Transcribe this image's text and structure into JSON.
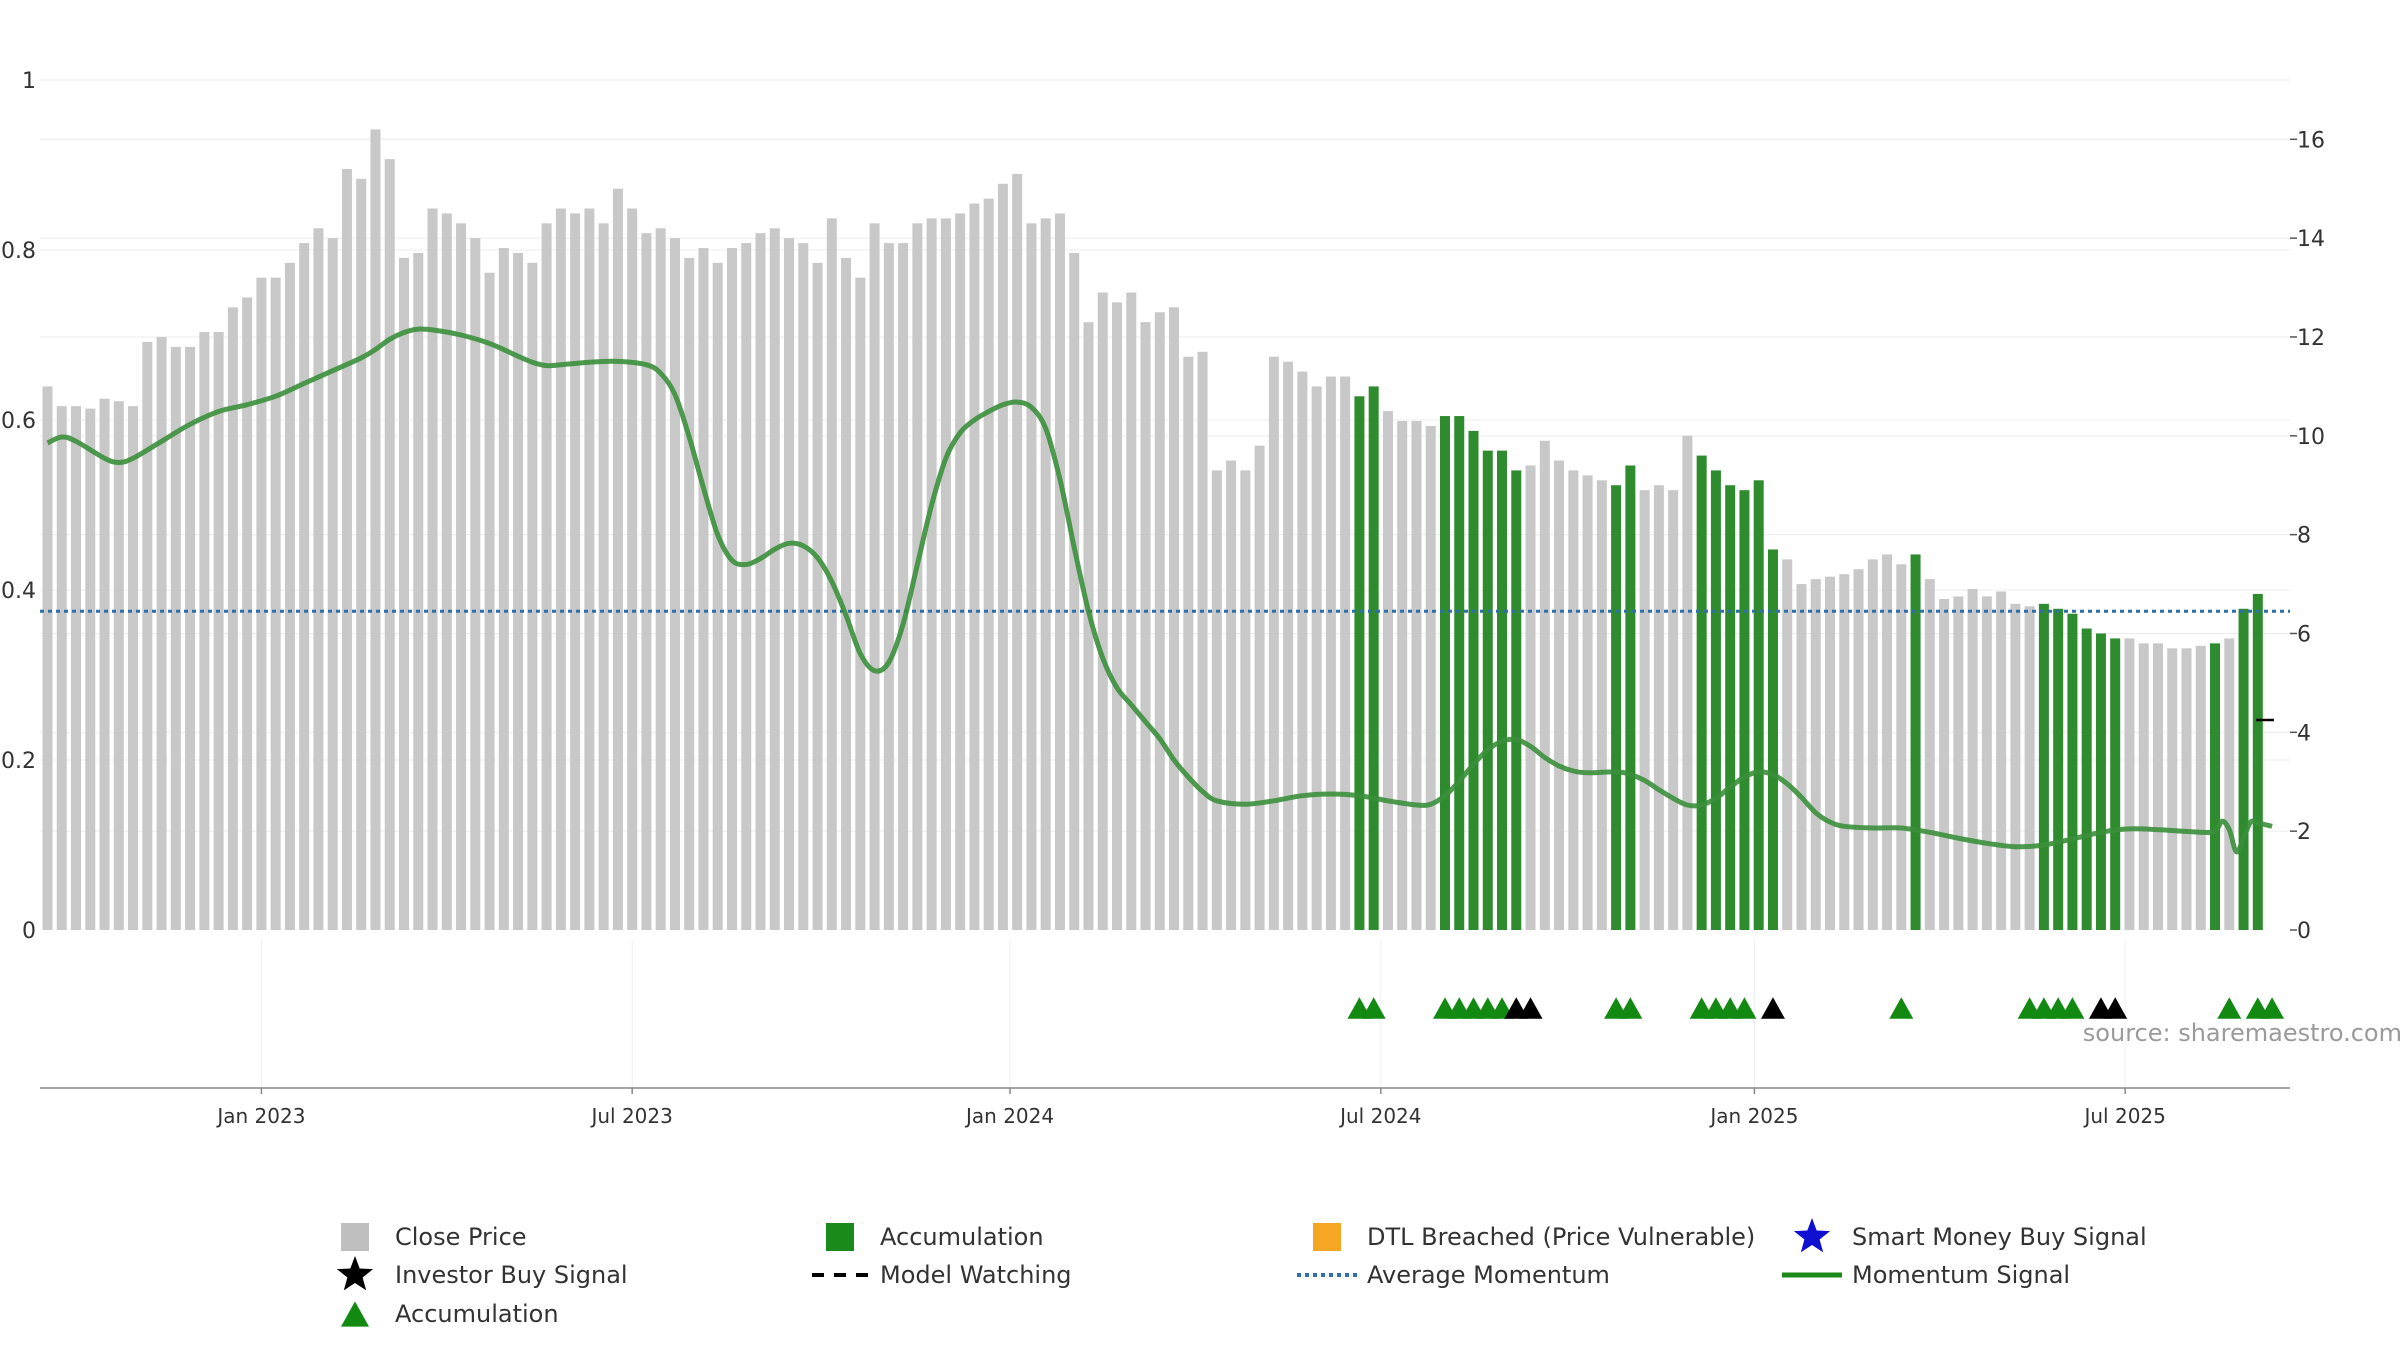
{
  "chart_data": {
    "type": "bar",
    "title": "",
    "source": "source: sharemaestro.com",
    "left_axis": {
      "ylim": [
        0,
        1
      ],
      "ticks": [
        0,
        0.2,
        0.4,
        0.6,
        0.8,
        1
      ],
      "tick_labels": [
        "0",
        "0.2",
        "0.4",
        "0.6",
        "0.8",
        "1"
      ]
    },
    "right_axis": {
      "ylim": [
        0,
        17.2
      ],
      "ticks": [
        0,
        2,
        4,
        6,
        8,
        10,
        12,
        14,
        16
      ],
      "tick_labels": [
        "0",
        "2",
        "4",
        "6",
        "8",
        "10",
        "12",
        "14",
        "16"
      ]
    },
    "x_axis": {
      "week_count": 156,
      "ticks": [
        {
          "label": "Jan 2023",
          "week": 15
        },
        {
          "label": "Jul 2023",
          "week": 41
        },
        {
          "label": "Jan 2024",
          "week": 67.5
        },
        {
          "label": "Jul 2024",
          "week": 93.5
        },
        {
          "label": "Jan 2025",
          "week": 119.7
        },
        {
          "label": "Jul 2025",
          "week": 145.7
        }
      ]
    },
    "series": [
      {
        "name": "Close Price",
        "axis": "right",
        "color": "#c8c8c8",
        "accumulation_color": "#2e8b2e",
        "values": [
          11.0,
          10.6,
          10.6,
          10.55,
          10.75,
          10.7,
          10.6,
          11.9,
          12.0,
          11.8,
          11.8,
          12.1,
          12.1,
          12.6,
          12.8,
          13.2,
          13.2,
          13.5,
          13.9,
          14.2,
          14.0,
          15.4,
          15.2,
          16.2,
          15.6,
          13.6,
          13.7,
          14.6,
          14.5,
          14.3,
          14.0,
          13.3,
          13.8,
          13.7,
          13.5,
          14.3,
          14.6,
          14.5,
          14.6,
          14.3,
          15.0,
          14.6,
          14.1,
          14.2,
          14.0,
          13.6,
          13.8,
          13.5,
          13.8,
          13.9,
          14.1,
          14.2,
          14.0,
          13.9,
          13.5,
          14.4,
          13.6,
          13.2,
          14.3,
          13.9,
          13.9,
          14.3,
          14.4,
          14.4,
          14.5,
          14.7,
          14.8,
          15.1,
          15.3,
          14.3,
          14.4,
          14.5,
          13.7,
          12.3,
          12.9,
          12.7,
          12.9,
          12.3,
          12.5,
          12.6,
          11.6,
          11.7,
          9.3,
          9.5,
          9.3,
          9.8,
          11.6,
          11.5,
          11.3,
          11.0,
          11.2,
          11.2,
          10.8,
          11.0,
          10.5,
          10.3,
          10.3,
          10.2,
          10.4,
          10.4,
          10.1,
          9.7,
          9.7,
          9.3,
          9.4,
          9.9,
          9.5,
          9.3,
          9.2,
          9.1,
          9.0,
          9.4,
          8.9,
          9.0,
          8.9,
          10.0,
          9.6,
          9.3,
          9.0,
          8.9,
          9.1,
          7.7,
          7.5,
          7.0,
          7.1,
          7.15,
          7.2,
          7.3,
          7.5,
          7.6,
          7.4,
          7.6,
          7.1,
          6.7,
          6.75,
          6.9,
          6.75,
          6.85,
          6.6,
          6.55,
          6.6,
          6.5,
          6.4,
          6.1,
          6.0,
          5.9,
          5.9,
          5.8,
          5.8,
          5.7,
          5.7,
          5.75,
          5.8,
          5.9,
          6.5,
          6.8
        ],
        "accumulation_weeks": [
          92,
          93,
          98,
          99,
          100,
          101,
          102,
          103,
          110,
          111,
          116,
          117,
          118,
          119,
          120,
          121,
          131,
          140,
          141,
          142,
          143,
          144,
          145,
          152,
          154,
          155
        ]
      },
      {
        "name": "Momentum Signal",
        "axis": "left",
        "color": "#3b8f3b",
        "anchors": [
          [
            0,
            0.573
          ],
          [
            1,
            0.58
          ],
          [
            2,
            0.575
          ],
          [
            4,
            0.555
          ],
          [
            5,
            0.55
          ],
          [
            6,
            0.555
          ],
          [
            8,
            0.575
          ],
          [
            10,
            0.595
          ],
          [
            12,
            0.61
          ],
          [
            14,
            0.618
          ],
          [
            16,
            0.628
          ],
          [
            18,
            0.643
          ],
          [
            20,
            0.658
          ],
          [
            22,
            0.673
          ],
          [
            23,
            0.683
          ],
          [
            24,
            0.695
          ],
          [
            25,
            0.703
          ],
          [
            26,
            0.707
          ],
          [
            27,
            0.706
          ],
          [
            29,
            0.7
          ],
          [
            31,
            0.69
          ],
          [
            33,
            0.675
          ],
          [
            34,
            0.668
          ],
          [
            35,
            0.664
          ],
          [
            36,
            0.665
          ],
          [
            38,
            0.668
          ],
          [
            40,
            0.669
          ],
          [
            42,
            0.665
          ],
          [
            43,
            0.655
          ],
          [
            44,
            0.63
          ],
          [
            45,
            0.58
          ],
          [
            46,
            0.52
          ],
          [
            47,
            0.465
          ],
          [
            48,
            0.435
          ],
          [
            49,
            0.43
          ],
          [
            50,
            0.437
          ],
          [
            51,
            0.448
          ],
          [
            52,
            0.455
          ],
          [
            53,
            0.452
          ],
          [
            54,
            0.438
          ],
          [
            55,
            0.41
          ],
          [
            56,
            0.37
          ],
          [
            57,
            0.325
          ],
          [
            58,
            0.305
          ],
          [
            59,
            0.315
          ],
          [
            60,
            0.36
          ],
          [
            61,
            0.43
          ],
          [
            62,
            0.5
          ],
          [
            63,
            0.555
          ],
          [
            64,
            0.585
          ],
          [
            65,
            0.6
          ],
          [
            66,
            0.61
          ],
          [
            67,
            0.618
          ],
          [
            68,
            0.621
          ],
          [
            69,
            0.615
          ],
          [
            70,
            0.59
          ],
          [
            71,
            0.53
          ],
          [
            72,
            0.45
          ],
          [
            73,
            0.375
          ],
          [
            74,
            0.32
          ],
          [
            75,
            0.285
          ],
          [
            76,
            0.265
          ],
          [
            77,
            0.245
          ],
          [
            78,
            0.225
          ],
          [
            79,
            0.2
          ],
          [
            80,
            0.18
          ],
          [
            81,
            0.163
          ],
          [
            82,
            0.152
          ],
          [
            84,
            0.148
          ],
          [
            86,
            0.152
          ],
          [
            88,
            0.158
          ],
          [
            90,
            0.16
          ],
          [
            92,
            0.158
          ],
          [
            94,
            0.152
          ],
          [
            96,
            0.147
          ],
          [
            97,
            0.148
          ],
          [
            98,
            0.158
          ],
          [
            99,
            0.175
          ],
          [
            100,
            0.195
          ],
          [
            101,
            0.212
          ],
          [
            102,
            0.222
          ],
          [
            103,
            0.224
          ],
          [
            104,
            0.216
          ],
          [
            105,
            0.203
          ],
          [
            106,
            0.193
          ],
          [
            107,
            0.187
          ],
          [
            108,
            0.185
          ],
          [
            110,
            0.186
          ],
          [
            111,
            0.183
          ],
          [
            112,
            0.176
          ],
          [
            113,
            0.165
          ],
          [
            114,
            0.155
          ],
          [
            115,
            0.147
          ],
          [
            116,
            0.147
          ],
          [
            117,
            0.155
          ],
          [
            118,
            0.168
          ],
          [
            119,
            0.18
          ],
          [
            120,
            0.186
          ],
          [
            121,
            0.183
          ],
          [
            122,
            0.172
          ],
          [
            123,
            0.156
          ],
          [
            124,
            0.138
          ],
          [
            125,
            0.127
          ],
          [
            126,
            0.122
          ],
          [
            128,
            0.12
          ],
          [
            130,
            0.12
          ],
          [
            132,
            0.115
          ],
          [
            134,
            0.108
          ],
          [
            136,
            0.102
          ],
          [
            138,
            0.098
          ],
          [
            140,
            0.1
          ],
          [
            142,
            0.107
          ],
          [
            144,
            0.115
          ],
          [
            146,
            0.119
          ],
          [
            148,
            0.118
          ],
          [
            150,
            0.116
          ],
          [
            151,
            0.115
          ],
          [
            152,
            0.116
          ],
          [
            152.5,
            0.128
          ],
          [
            153,
            0.118
          ],
          [
            153.5,
            0.092
          ],
          [
            154,
            0.108
          ],
          [
            154.5,
            0.127
          ],
          [
            155,
            0.126
          ],
          [
            156,
            0.122
          ]
        ]
      },
      {
        "name": "Average Momentum",
        "axis": "left",
        "color": "#2f6fa8",
        "value": 0.375
      },
      {
        "name": "Accumulation",
        "marker": "triangle",
        "color": "#128a12",
        "weeks": [
          92,
          93,
          98,
          99,
          100,
          101,
          102,
          110,
          111,
          116,
          117,
          118,
          119,
          130,
          139,
          140,
          141,
          142,
          153,
          155,
          156
        ]
      },
      {
        "name": "Investor Buy Signal",
        "marker": "triangle",
        "color": "#000000",
        "weeks": [
          103,
          104,
          121,
          144,
          145
        ]
      },
      {
        "name": "Model Watching",
        "marker": "dash",
        "color": "#000000",
        "points": [
          [
            155.5,
            4.25
          ]
        ]
      }
    ],
    "legend": {
      "placement": "bottom-center",
      "entries": [
        {
          "label": "Close Price",
          "symbol": "square",
          "color": "#bfbfbf"
        },
        {
          "label": "Accumulation",
          "symbol": "square",
          "color": "#1a8a1a"
        },
        {
          "label": "DTL Breached (Price Vulnerable)",
          "symbol": "square",
          "color": "#f5a623"
        },
        {
          "label": "Smart Money Buy Signal",
          "symbol": "star",
          "color": "#1010d0"
        },
        {
          "label": "Investor Buy Signal",
          "symbol": "star",
          "color": "#000000"
        },
        {
          "label": "Model Watching",
          "symbol": "dash",
          "color": "#000000"
        },
        {
          "label": "Average Momentum",
          "symbol": "dotted",
          "color": "#2f6fa8"
        },
        {
          "label": "Momentum Signal",
          "symbol": "line",
          "color": "#1a8a1a"
        },
        {
          "label": "Accumulation",
          "symbol": "triangle",
          "color": "#128a12"
        }
      ]
    }
  }
}
